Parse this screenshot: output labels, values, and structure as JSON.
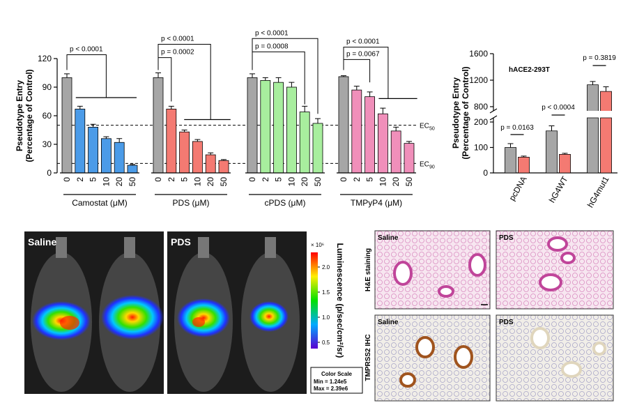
{
  "chart_data": [
    {
      "type": "bar",
      "ylabel": [
        "Pseudotype Entry",
        "(Percentage of Control)"
      ],
      "ylim": [
        0,
        120
      ],
      "yticks": [
        0,
        30,
        60,
        90,
        120
      ],
      "control_color": "#a6a6a6",
      "reference_lines": [
        {
          "value": 50,
          "label": "EC",
          "subscript": "50"
        },
        {
          "value": 10,
          "label": "EC",
          "subscript": "90"
        }
      ],
      "groups": [
        {
          "name": "Camostat (μM)",
          "color": "#4b9be8",
          "categories": [
            "0",
            "2",
            "5",
            "10",
            "20",
            "50"
          ],
          "values": [
            100,
            67,
            48,
            36,
            32,
            8
          ],
          "errors": [
            4,
            3,
            3,
            2,
            4,
            1
          ],
          "annotations": [
            "p < 0.0001"
          ]
        },
        {
          "name": "PDS (μM)",
          "color": "#f47a72",
          "categories": [
            "0",
            "2",
            "5",
            "10",
            "20",
            "50"
          ],
          "values": [
            100,
            67,
            43,
            33,
            19,
            13
          ],
          "errors": [
            5,
            3,
            2,
            2,
            2,
            1
          ],
          "annotations": [
            "p < 0.0001",
            "p = 0.0002"
          ]
        },
        {
          "name": "cPDS (μM)",
          "color": "#a8ee9e",
          "categories": [
            "0",
            "2",
            "5",
            "10",
            "20",
            "50"
          ],
          "values": [
            100,
            97,
            95,
            90,
            64,
            52
          ],
          "errors": [
            4,
            3,
            5,
            5,
            6,
            5
          ],
          "annotations": [
            "p < 0.0001",
            "p = 0.0008"
          ]
        },
        {
          "name": "TMPyP4 (μM)",
          "color": "#f08fba",
          "categories": [
            "0",
            "2",
            "5",
            "10",
            "20",
            "50"
          ],
          "values": [
            101,
            87,
            80,
            62,
            44,
            31
          ],
          "errors": [
            1,
            4,
            5,
            6,
            4,
            2
          ],
          "annotations": [
            "p < 0.0001",
            "p = 0.0067"
          ]
        }
      ]
    },
    {
      "type": "bar",
      "title": "hACE2-293T",
      "ylabel": [
        "Pseudotype Entry",
        "(Percentage of Control)"
      ],
      "ylim": [
        0,
        1600
      ],
      "axis_break": [
        200,
        800
      ],
      "yticks": [
        0,
        100,
        200,
        800,
        1200,
        1600
      ],
      "categories": [
        "pcDNA",
        "hG4WT",
        "hG4mut1"
      ],
      "series": [
        {
          "color": "#a6a6a6",
          "values": [
            100,
            165,
            1130
          ],
          "errors": [
            15,
            20,
            50
          ]
        },
        {
          "color": "#f47a72",
          "values": [
            62,
            73,
            1030
          ],
          "errors": [
            4,
            4,
            70
          ]
        }
      ],
      "annotations": [
        "p = 0.0163",
        "p < 0.0004",
        "p = 0.3819"
      ]
    }
  ],
  "imaging": {
    "panels": [
      "Saline",
      "PDS"
    ],
    "colorbar": {
      "exponent": "× 10⁶",
      "tick_labels": [
        "2.0",
        "1.5",
        "1.0",
        "0.5"
      ],
      "label": "Luminescence (p/sec/cm²/sr)"
    },
    "color_scale": [
      "Color Scale",
      "Min = 1.24e5",
      "Max = 2.39e6"
    ]
  },
  "histology": {
    "columns": [
      "Saline",
      "PDS"
    ],
    "rows": [
      "H&E staining",
      "TMPRSS2 IHC"
    ]
  }
}
